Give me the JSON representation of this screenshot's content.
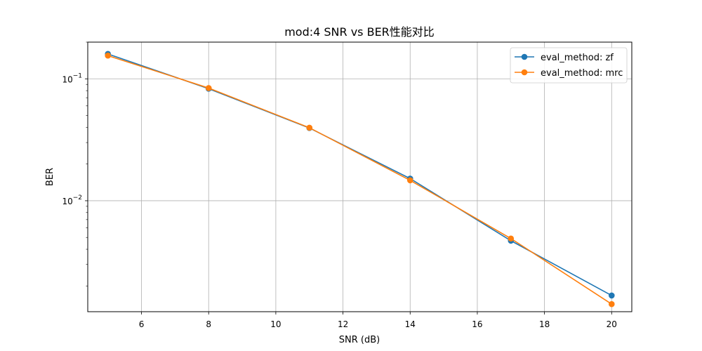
{
  "chart_data": {
    "type": "line",
    "title": "mod:4 SNR vs BER性能对比",
    "xlabel": "SNR (dB)",
    "ylabel": "BER",
    "yscale": "log",
    "xlim": [
      4.4,
      20.6
    ],
    "ylim": [
      0.00123,
      0.2
    ],
    "x_ticks": [
      6,
      8,
      10,
      12,
      14,
      16,
      18,
      20
    ],
    "y_ticks": [
      {
        "value": 0.1,
        "base": "10",
        "exp": "−1"
      },
      {
        "value": 0.01,
        "base": "10",
        "exp": "−2"
      }
    ],
    "y_minor_ticks": [
      0.002,
      0.003,
      0.004,
      0.005,
      0.006,
      0.007,
      0.008,
      0.009,
      0.02,
      0.03,
      0.04,
      0.05,
      0.06,
      0.07,
      0.08,
      0.09,
      0.2
    ],
    "grid": true,
    "legend_position": "top-right",
    "x": [
      5,
      8,
      11,
      14,
      17,
      20
    ],
    "series": [
      {
        "name": "eval_method: zf",
        "color": "#1f77b4",
        "values": [
          0.16,
          0.083,
          0.0395,
          0.0152,
          0.0047,
          0.00167
        ]
      },
      {
        "name": "eval_method: mrc",
        "color": "#ff7f0e",
        "values": [
          0.155,
          0.084,
          0.0397,
          0.0147,
          0.0049,
          0.00142
        ]
      }
    ]
  }
}
